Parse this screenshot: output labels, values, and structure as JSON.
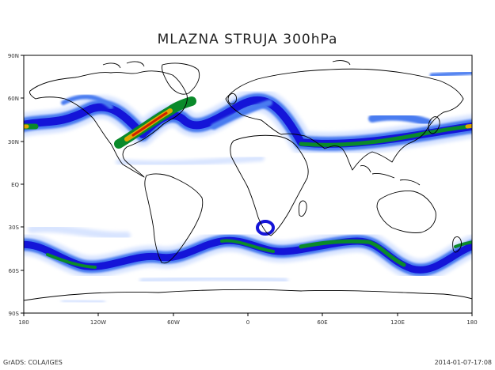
{
  "title": "MLAZNA STRUJA 300hPa",
  "axes": {
    "lat_labels": [
      "90N",
      "60N",
      "30N",
      "EQ",
      "30S",
      "60S",
      "90S"
    ],
    "lon_labels": [
      "180",
      "120W",
      "60W",
      "0",
      "60E",
      "120E",
      "180"
    ]
  },
  "credit": "GrADS: COLA/IGES",
  "timestamp": "2014-01-07-17:08",
  "colors": {
    "jet_levels": [
      "#d8e4ff",
      "#4a7cf0",
      "#1414d8",
      "#0a8a2a",
      "#e0a800",
      "#d02000"
    ],
    "coastline": "#000000",
    "frame": "#000000"
  }
}
